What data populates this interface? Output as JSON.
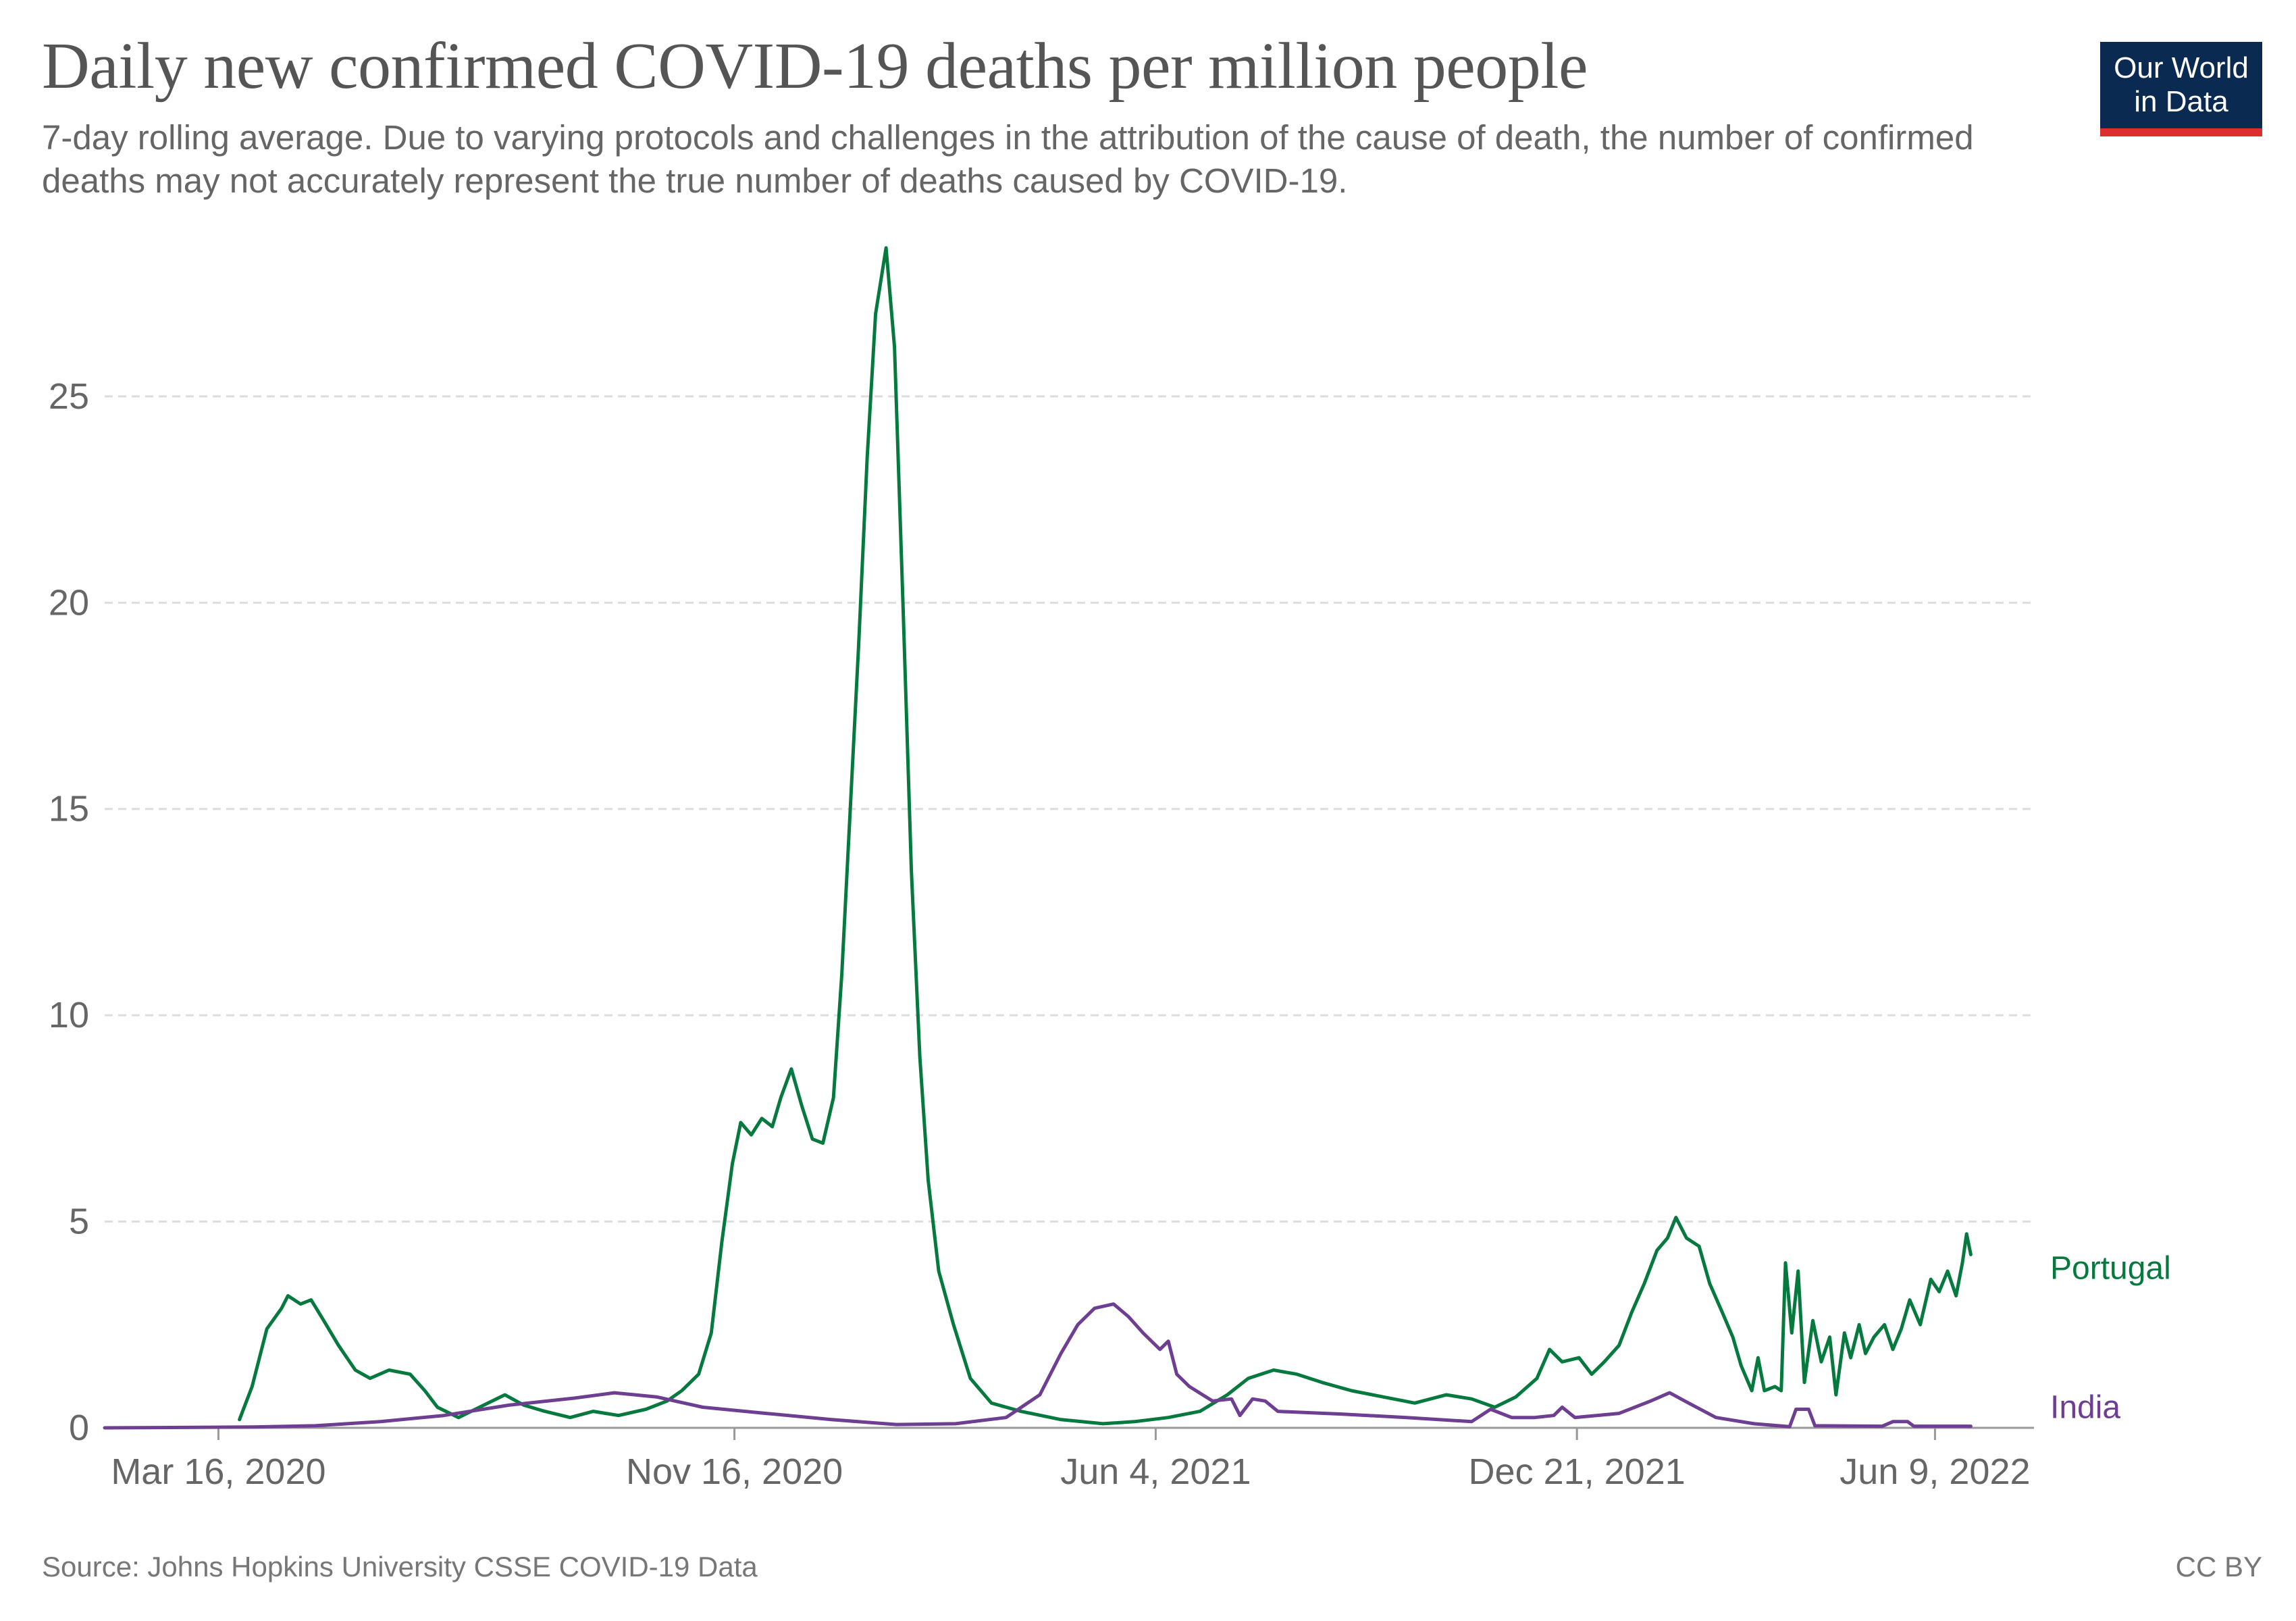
{
  "header": {
    "title": "Daily new confirmed COVID-19 deaths per million people",
    "subtitle": "7-day rolling average. Due to varying protocols and challenges in the attribution of the cause of death, the number of confirmed deaths may not accurately represent the true number of deaths caused by COVID-19."
  },
  "logo": {
    "line1": "Our World",
    "line2": "in Data",
    "bg_color": "#0b2a52",
    "accent_color": "#dc2e2e"
  },
  "footer": {
    "source": "Source: Johns Hopkins University CSSE COVID-19 Data",
    "license": "CC BY"
  },
  "chart_data": {
    "type": "line",
    "x_scale": "time",
    "xlim": [
      "2020-01-22",
      "2022-07-26"
    ],
    "ylim": [
      0,
      28.6
    ],
    "y_ticks": [
      0,
      5,
      10,
      15,
      20,
      25
    ],
    "x_ticks": [
      {
        "date": "2020-03-16",
        "label": "Mar 16, 2020"
      },
      {
        "date": "2020-11-16",
        "label": "Nov 16, 2020"
      },
      {
        "date": "2021-06-04",
        "label": "Jun 4, 2021"
      },
      {
        "date": "2021-12-21",
        "label": "Dec 21, 2021"
      },
      {
        "date": "2022-06-09",
        "label": "Jun 9, 2022"
      }
    ],
    "grid": "horizontal dashed",
    "legend": "labels at line ends",
    "series": [
      {
        "name": "Portugal",
        "color": "#067a3e",
        "points": [
          [
            "2020-03-26",
            0.2
          ],
          [
            "2020-04-01",
            1.0
          ],
          [
            "2020-04-08",
            2.4
          ],
          [
            "2020-04-15",
            2.9
          ],
          [
            "2020-04-18",
            3.2
          ],
          [
            "2020-04-24",
            3.0
          ],
          [
            "2020-04-29",
            3.1
          ],
          [
            "2020-05-05",
            2.6
          ],
          [
            "2020-05-12",
            2.0
          ],
          [
            "2020-05-20",
            1.4
          ],
          [
            "2020-05-27",
            1.2
          ],
          [
            "2020-06-05",
            1.4
          ],
          [
            "2020-06-15",
            1.3
          ],
          [
            "2020-06-22",
            0.9
          ],
          [
            "2020-06-28",
            0.5
          ],
          [
            "2020-07-08",
            0.25
          ],
          [
            "2020-07-20",
            0.55
          ],
          [
            "2020-07-30",
            0.8
          ],
          [
            "2020-08-08",
            0.55
          ],
          [
            "2020-08-18",
            0.4
          ],
          [
            "2020-08-30",
            0.25
          ],
          [
            "2020-09-10",
            0.4
          ],
          [
            "2020-09-22",
            0.3
          ],
          [
            "2020-10-05",
            0.45
          ],
          [
            "2020-10-15",
            0.65
          ],
          [
            "2020-10-22",
            0.9
          ],
          [
            "2020-10-30",
            1.3
          ],
          [
            "2020-11-05",
            2.3
          ],
          [
            "2020-11-10",
            4.5
          ],
          [
            "2020-11-15",
            6.4
          ],
          [
            "2020-11-19",
            7.4
          ],
          [
            "2020-11-24",
            7.1
          ],
          [
            "2020-11-29",
            7.5
          ],
          [
            "2020-12-04",
            7.3
          ],
          [
            "2020-12-08",
            8.0
          ],
          [
            "2020-12-13",
            8.7
          ],
          [
            "2020-12-18",
            7.8
          ],
          [
            "2020-12-23",
            7.0
          ],
          [
            "2020-12-28",
            6.9
          ],
          [
            "2021-01-02",
            8.0
          ],
          [
            "2021-01-06",
            11.0
          ],
          [
            "2021-01-10",
            15.0
          ],
          [
            "2021-01-14",
            19.0
          ],
          [
            "2021-01-18",
            23.5
          ],
          [
            "2021-01-22",
            27.0
          ],
          [
            "2021-01-27",
            28.6
          ],
          [
            "2021-01-31",
            26.2
          ],
          [
            "2021-02-04",
            20.0
          ],
          [
            "2021-02-08",
            13.5
          ],
          [
            "2021-02-12",
            9.0
          ],
          [
            "2021-02-16",
            6.0
          ],
          [
            "2021-02-21",
            3.8
          ],
          [
            "2021-02-28",
            2.5
          ],
          [
            "2021-03-08",
            1.2
          ],
          [
            "2021-03-18",
            0.6
          ],
          [
            "2021-04-01",
            0.4
          ],
          [
            "2021-04-20",
            0.2
          ],
          [
            "2021-05-10",
            0.1
          ],
          [
            "2021-05-25",
            0.15
          ],
          [
            "2021-06-10",
            0.25
          ],
          [
            "2021-06-25",
            0.4
          ],
          [
            "2021-07-08",
            0.8
          ],
          [
            "2021-07-18",
            1.2
          ],
          [
            "2021-07-30",
            1.4
          ],
          [
            "2021-08-10",
            1.3
          ],
          [
            "2021-08-22",
            1.1
          ],
          [
            "2021-09-05",
            0.9
          ],
          [
            "2021-09-20",
            0.75
          ],
          [
            "2021-10-05",
            0.6
          ],
          [
            "2021-10-20",
            0.8
          ],
          [
            "2021-11-01",
            0.7
          ],
          [
            "2021-11-12",
            0.5
          ],
          [
            "2021-11-22",
            0.75
          ],
          [
            "2021-12-02",
            1.2
          ],
          [
            "2021-12-08",
            1.9
          ],
          [
            "2021-12-14",
            1.6
          ],
          [
            "2021-12-22",
            1.7
          ],
          [
            "2021-12-28",
            1.3
          ],
          [
            "2022-01-03",
            1.6
          ],
          [
            "2022-01-10",
            2.0
          ],
          [
            "2022-01-16",
            2.8
          ],
          [
            "2022-01-22",
            3.5
          ],
          [
            "2022-01-28",
            4.3
          ],
          [
            "2022-02-02",
            4.6
          ],
          [
            "2022-02-06",
            5.1
          ],
          [
            "2022-02-11",
            4.6
          ],
          [
            "2022-02-17",
            4.4
          ],
          [
            "2022-02-22",
            3.5
          ],
          [
            "2022-02-28",
            2.8
          ],
          [
            "2022-03-05",
            2.2
          ],
          [
            "2022-03-09",
            1.5
          ],
          [
            "2022-03-14",
            0.9
          ],
          [
            "2022-03-17",
            1.7
          ],
          [
            "2022-03-20",
            0.9
          ],
          [
            "2022-03-25",
            1.0
          ],
          [
            "2022-03-28",
            0.9
          ],
          [
            "2022-03-30",
            4.0
          ],
          [
            "2022-04-02",
            2.3
          ],
          [
            "2022-04-05",
            3.8
          ],
          [
            "2022-04-08",
            1.1
          ],
          [
            "2022-04-12",
            2.6
          ],
          [
            "2022-04-16",
            1.6
          ],
          [
            "2022-04-20",
            2.2
          ],
          [
            "2022-04-23",
            0.8
          ],
          [
            "2022-04-27",
            2.3
          ],
          [
            "2022-04-30",
            1.7
          ],
          [
            "2022-05-04",
            2.5
          ],
          [
            "2022-05-07",
            1.8
          ],
          [
            "2022-05-11",
            2.2
          ],
          [
            "2022-05-16",
            2.5
          ],
          [
            "2022-05-20",
            1.9
          ],
          [
            "2022-05-24",
            2.4
          ],
          [
            "2022-05-28",
            3.1
          ],
          [
            "2022-06-02",
            2.5
          ],
          [
            "2022-06-07",
            3.6
          ],
          [
            "2022-06-11",
            3.3
          ],
          [
            "2022-06-15",
            3.8
          ],
          [
            "2022-06-19",
            3.2
          ],
          [
            "2022-06-22",
            4.0
          ],
          [
            "2022-06-24",
            4.7
          ],
          [
            "2022-06-26",
            4.2
          ]
        ]
      },
      {
        "name": "India",
        "color": "#6d3e91",
        "points": [
          [
            "2020-01-22",
            0.0
          ],
          [
            "2020-04-01",
            0.02
          ],
          [
            "2020-05-01",
            0.05
          ],
          [
            "2020-06-01",
            0.15
          ],
          [
            "2020-07-01",
            0.3
          ],
          [
            "2020-08-01",
            0.55
          ],
          [
            "2020-09-01",
            0.72
          ],
          [
            "2020-09-20",
            0.85
          ],
          [
            "2020-10-10",
            0.75
          ],
          [
            "2020-11-01",
            0.5
          ],
          [
            "2020-12-01",
            0.35
          ],
          [
            "2021-01-01",
            0.2
          ],
          [
            "2021-02-01",
            0.08
          ],
          [
            "2021-03-01",
            0.1
          ],
          [
            "2021-03-25",
            0.25
          ],
          [
            "2021-04-10",
            0.8
          ],
          [
            "2021-04-20",
            1.8
          ],
          [
            "2021-04-28",
            2.5
          ],
          [
            "2021-05-06",
            2.9
          ],
          [
            "2021-05-15",
            3.0
          ],
          [
            "2021-05-22",
            2.7
          ],
          [
            "2021-05-29",
            2.3
          ],
          [
            "2021-06-06",
            1.9
          ],
          [
            "2021-06-10",
            2.1
          ],
          [
            "2021-06-14",
            1.3
          ],
          [
            "2021-06-20",
            1.0
          ],
          [
            "2021-07-01",
            0.65
          ],
          [
            "2021-07-10",
            0.7
          ],
          [
            "2021-07-14",
            0.3
          ],
          [
            "2021-07-20",
            0.7
          ],
          [
            "2021-07-26",
            0.65
          ],
          [
            "2021-08-01",
            0.4
          ],
          [
            "2021-09-01",
            0.33
          ],
          [
            "2021-10-01",
            0.25
          ],
          [
            "2021-11-01",
            0.15
          ],
          [
            "2021-11-10",
            0.45
          ],
          [
            "2021-11-20",
            0.25
          ],
          [
            "2021-12-01",
            0.25
          ],
          [
            "2021-12-10",
            0.3
          ],
          [
            "2021-12-14",
            0.5
          ],
          [
            "2021-12-20",
            0.25
          ],
          [
            "2022-01-10",
            0.35
          ],
          [
            "2022-01-25",
            0.65
          ],
          [
            "2022-02-03",
            0.85
          ],
          [
            "2022-02-12",
            0.6
          ],
          [
            "2022-02-25",
            0.25
          ],
          [
            "2022-03-15",
            0.1
          ],
          [
            "2022-04-01",
            0.03
          ],
          [
            "2022-04-04",
            0.45
          ],
          [
            "2022-04-10",
            0.45
          ],
          [
            "2022-04-13",
            0.05
          ],
          [
            "2022-05-15",
            0.04
          ],
          [
            "2022-05-20",
            0.15
          ],
          [
            "2022-05-27",
            0.15
          ],
          [
            "2022-05-30",
            0.04
          ],
          [
            "2022-06-26",
            0.04
          ]
        ]
      }
    ]
  }
}
